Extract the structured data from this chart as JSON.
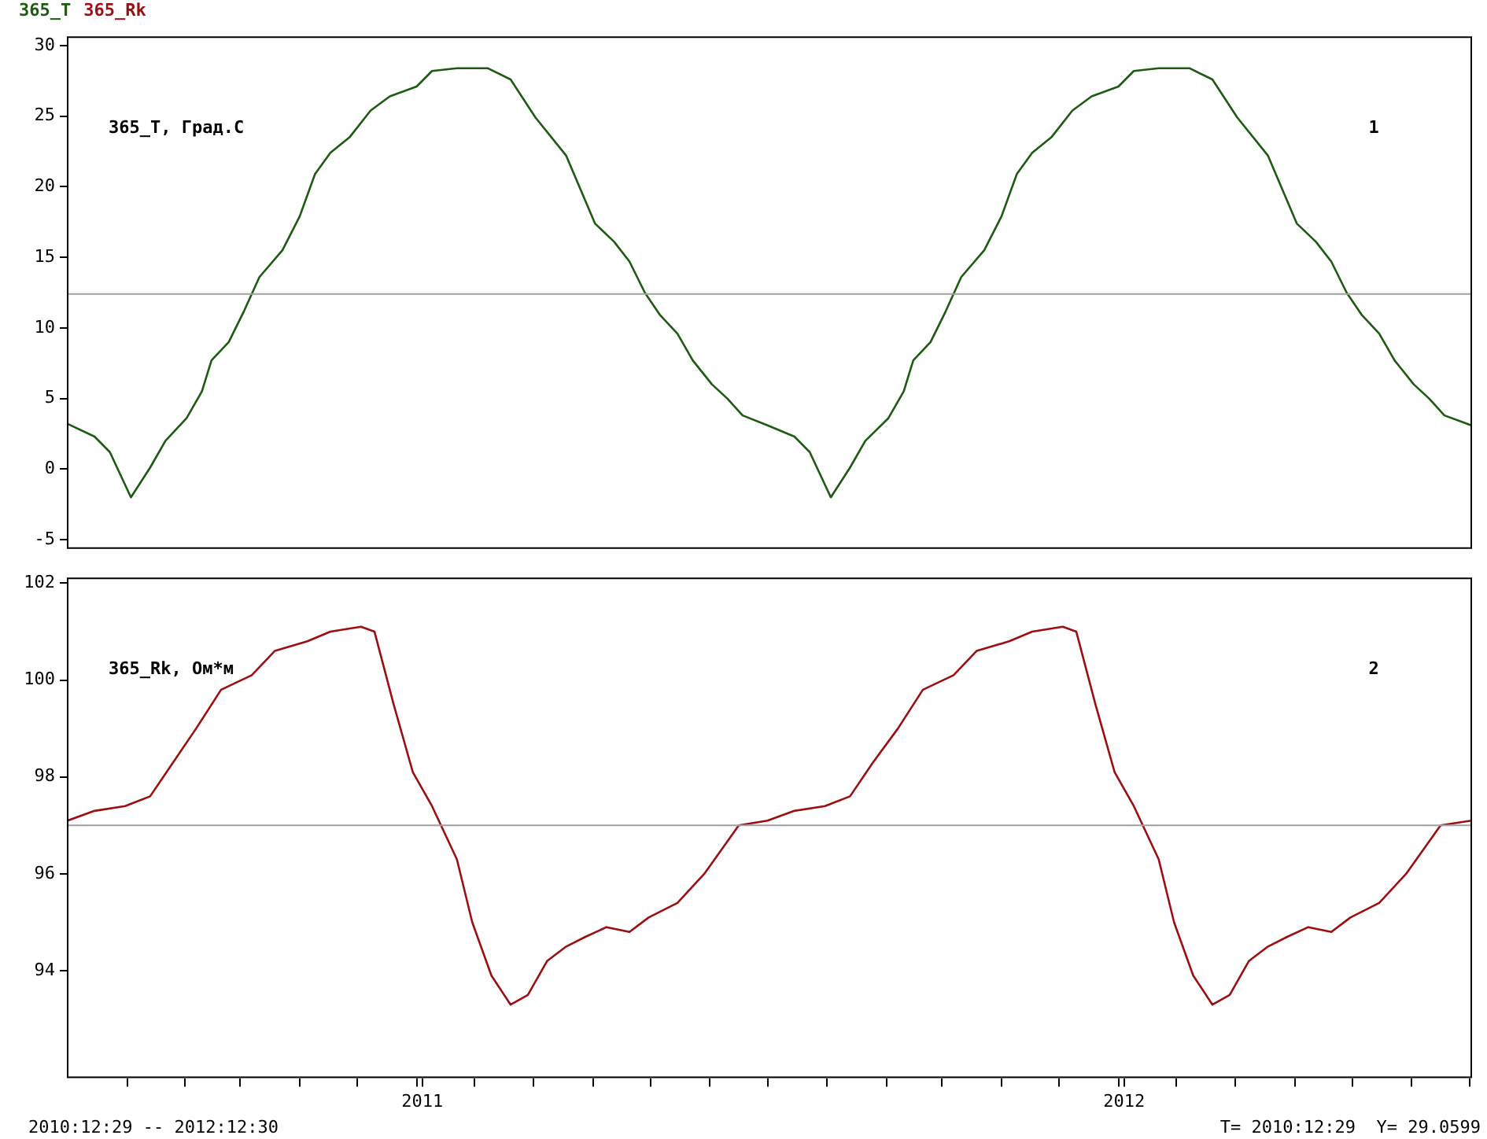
{
  "chart_data": [
    {
      "type": "line",
      "legend": "top left",
      "tick_labels": "y",
      "grid": false,
      "marker": "none",
      "line_style": "solid",
      "annotations": [
        "365_T, Град.С",
        "1"
      ],
      "xlim": [
        "2010-12-29",
        "2012-12-30"
      ],
      "ylim": [
        -5.6,
        30.6
      ],
      "yticks": [
        -5,
        0,
        5,
        10,
        15,
        20,
        25,
        30
      ],
      "ref_lines": [
        {
          "axis": "y",
          "value": 12.4,
          "color": "#a0a0a0"
        }
      ],
      "series": [
        {
          "name": "365_T",
          "color": "#1e5b12",
          "x": [
            "2010-12-29",
            "2011-01-12",
            "2011-01-20",
            "2011-01-31",
            "2011-02-10",
            "2011-02-18",
            "2011-03-01",
            "2011-03-09",
            "2011-03-14",
            "2011-03-23",
            "2011-03-31",
            "2011-04-08",
            "2011-04-20",
            "2011-04-29",
            "2011-05-07",
            "2011-05-15",
            "2011-05-25",
            "2011-06-05",
            "2011-06-15",
            "2011-06-29",
            "2011-07-07",
            "2011-07-20",
            "2011-08-05",
            "2011-08-17",
            "2011-08-30",
            "2011-09-15",
            "2011-09-30",
            "2011-10-10",
            "2011-10-18",
            "2011-10-26",
            "2011-11-03",
            "2011-11-12",
            "2011-11-20",
            "2011-11-30",
            "2011-12-08",
            "2011-12-16",
            "2011-12-29",
            "2012-01-12",
            "2012-01-20",
            "2012-01-31",
            "2012-02-10",
            "2012-02-18",
            "2012-03-01",
            "2012-03-09",
            "2012-03-14",
            "2012-03-23",
            "2012-03-31",
            "2012-04-08",
            "2012-04-20",
            "2012-04-29",
            "2012-05-07",
            "2012-05-15",
            "2012-05-25",
            "2012-06-05",
            "2012-06-15",
            "2012-06-29",
            "2012-07-07",
            "2012-07-20",
            "2012-08-05",
            "2012-08-17",
            "2012-08-30",
            "2012-09-15",
            "2012-09-30",
            "2012-10-10",
            "2012-10-18",
            "2012-10-26",
            "2012-11-03",
            "2012-11-12",
            "2012-11-20",
            "2012-11-30",
            "2012-12-08",
            "2012-12-16",
            "2012-12-30"
          ],
          "values": [
            3.2,
            2.3,
            1.2,
            -2.0,
            0.1,
            2.0,
            3.6,
            5.5,
            7.7,
            9.0,
            11.2,
            13.6,
            15.5,
            17.9,
            20.9,
            22.4,
            23.5,
            25.4,
            26.4,
            27.1,
            28.2,
            28.4,
            28.4,
            27.6,
            24.9,
            22.2,
            17.4,
            16.1,
            14.7,
            12.5,
            10.9,
            9.6,
            7.7,
            6.0,
            5.0,
            3.8,
            3.1,
            2.3,
            1.2,
            -2.0,
            0.1,
            2.0,
            3.6,
            5.5,
            7.7,
            9.0,
            11.2,
            13.6,
            15.5,
            17.9,
            20.9,
            22.4,
            23.5,
            25.4,
            26.4,
            27.1,
            28.2,
            28.4,
            28.4,
            27.6,
            24.9,
            22.2,
            17.4,
            16.1,
            14.7,
            12.5,
            10.9,
            9.6,
            7.7,
            6.0,
            5.0,
            3.8,
            3.1
          ]
        }
      ]
    },
    {
      "type": "line",
      "legend": "top left",
      "grid": false,
      "marker": "none",
      "line_style": "solid",
      "annotations": [
        "365_Rk, Ом*м",
        "2",
        "2010:12:29 -- 2012:12:30",
        "T= 2010:12:29  Y= 29.0599"
      ],
      "xlim": [
        "2010-12-29",
        "2012-12-30"
      ],
      "xticks": [
        {
          "value": "2011-01-29",
          "label": null
        },
        {
          "value": "2011-02-28",
          "label": null
        },
        {
          "value": "2011-03-29",
          "label": null
        },
        {
          "value": "2011-04-29",
          "label": null
        },
        {
          "value": "2011-05-29",
          "label": null
        },
        {
          "value": "2011-06-29",
          "label": null
        },
        {
          "value": "2011-07-02",
          "label": "2011"
        },
        {
          "value": "2011-07-29",
          "label": null
        },
        {
          "value": "2011-08-29",
          "label": null
        },
        {
          "value": "2011-09-29",
          "label": null
        },
        {
          "value": "2011-10-29",
          "label": null
        },
        {
          "value": "2011-11-29",
          "label": null
        },
        {
          "value": "2011-12-29",
          "label": null
        },
        {
          "value": "2012-01-29",
          "label": null
        },
        {
          "value": "2012-02-29",
          "label": null
        },
        {
          "value": "2012-03-29",
          "label": null
        },
        {
          "value": "2012-04-29",
          "label": null
        },
        {
          "value": "2012-05-29",
          "label": null
        },
        {
          "value": "2012-06-29",
          "label": null
        },
        {
          "value": "2012-07-02",
          "label": "2012"
        },
        {
          "value": "2012-07-29",
          "label": null
        },
        {
          "value": "2012-08-29",
          "label": null
        },
        {
          "value": "2012-09-29",
          "label": null
        },
        {
          "value": "2012-10-29",
          "label": null
        },
        {
          "value": "2012-11-29",
          "label": null
        },
        {
          "value": "2012-12-29",
          "label": null
        }
      ],
      "ylim": [
        91.8,
        102.1
      ],
      "yticks": [
        94,
        96,
        98,
        100,
        102
      ],
      "ref_lines": [
        {
          "axis": "y",
          "value": 97.0,
          "color": "#a0a0a0"
        }
      ],
      "series": [
        {
          "name": "365_Rk",
          "color": "#9b0f12",
          "x": [
            "2010-12-29",
            "2011-01-12",
            "2011-01-28",
            "2011-02-10",
            "2011-02-22",
            "2011-03-06",
            "2011-03-19",
            "2011-04-04",
            "2011-04-16",
            "2011-05-03",
            "2011-05-15",
            "2011-05-31",
            "2011-06-07",
            "2011-06-17",
            "2011-06-27",
            "2011-07-07",
            "2011-07-20",
            "2011-07-28",
            "2011-08-07",
            "2011-08-17",
            "2011-08-26",
            "2011-09-05",
            "2011-09-15",
            "2011-09-25",
            "2011-10-06",
            "2011-10-18",
            "2011-10-28",
            "2011-11-12",
            "2011-11-26",
            "2011-12-14",
            "2011-12-29",
            "2012-01-12",
            "2012-01-28",
            "2012-02-10",
            "2012-02-22",
            "2012-03-06",
            "2012-03-19",
            "2012-04-04",
            "2012-04-16",
            "2012-05-03",
            "2012-05-15",
            "2012-05-31",
            "2012-06-07",
            "2012-06-17",
            "2012-06-27",
            "2012-07-07",
            "2012-07-20",
            "2012-07-28",
            "2012-08-07",
            "2012-08-17",
            "2012-08-26",
            "2012-09-05",
            "2012-09-15",
            "2012-09-25",
            "2012-10-06",
            "2012-10-18",
            "2012-10-28",
            "2012-11-12",
            "2012-11-26",
            "2012-12-14",
            "2012-12-30"
          ],
          "values": [
            97.1,
            97.3,
            97.4,
            97.6,
            98.3,
            99.0,
            99.8,
            100.1,
            100.6,
            100.8,
            101.0,
            101.1,
            101.0,
            99.5,
            98.1,
            97.4,
            96.3,
            95.0,
            93.9,
            93.3,
            93.5,
            94.2,
            94.5,
            94.7,
            94.9,
            94.8,
            95.1,
            95.4,
            96.0,
            97.0,
            97.1,
            97.3,
            97.4,
            97.6,
            98.3,
            99.0,
            99.8,
            100.1,
            100.6,
            100.8,
            101.0,
            101.1,
            101.0,
            99.5,
            98.1,
            97.4,
            96.3,
            95.0,
            93.9,
            93.3,
            93.5,
            94.2,
            94.5,
            94.7,
            94.9,
            94.8,
            95.1,
            95.4,
            96.0,
            97.0,
            97.1
          ]
        }
      ]
    }
  ]
}
